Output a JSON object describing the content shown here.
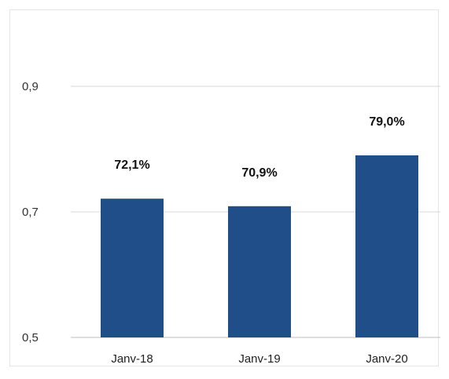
{
  "chart_data": {
    "type": "bar",
    "categories": [
      "Janv-18",
      "Janv-19",
      "Janv-20"
    ],
    "values": [
      0.721,
      0.709,
      0.79
    ],
    "data_labels": [
      "72,1%",
      "70,9%",
      "79,0%"
    ],
    "y_ticks": [
      "0,5",
      "0,7",
      "0,9"
    ],
    "y_tick_values": [
      0.5,
      0.7,
      0.9
    ],
    "ylim": [
      0.5,
      0.9
    ],
    "title": "",
    "xlabel": "",
    "ylabel": "",
    "grid": true,
    "bar_color": "#1f4e89"
  }
}
